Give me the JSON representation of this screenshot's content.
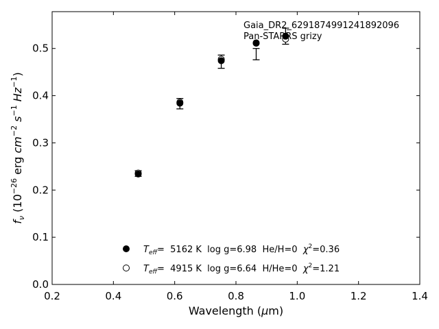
{
  "chart_data": {
    "type": "scatter",
    "annotation_lines": [
      "Gaia_DR2_6291874991241892096",
      "Pan-STARRS grizy"
    ],
    "xlabel": {
      "main": "Wavelength (",
      "mu": "μ",
      "end": "m)"
    },
    "ylabel": {
      "f": "f",
      "nu": "ν",
      "open": " (10",
      "e1": "−26",
      "erg": " erg ",
      "cm": "cm",
      "e2": "−2",
      "s": " s",
      "e3": "−1",
      "hz": " Hz",
      "e4": "−1",
      "close": ")"
    },
    "xlim": [
      0.2,
      1.4
    ],
    "ylim": [
      0.0,
      0.578
    ],
    "xticks": [
      0.2,
      0.4,
      0.6,
      0.8,
      1.0,
      1.2,
      1.4
    ],
    "xtick_labels": [
      "0.2",
      "0.4",
      "0.6",
      "0.8",
      "1.0",
      "1.2",
      "1.4"
    ],
    "yticks": [
      0.0,
      0.1,
      0.2,
      0.3,
      0.4,
      0.5
    ],
    "ytick_labels": [
      "0.0",
      "0.1",
      "0.2",
      "0.3",
      "0.4",
      "0.5"
    ],
    "observed": {
      "x": [
        0.481,
        0.617,
        0.752,
        0.866,
        0.962
      ],
      "y": [
        0.235,
        0.383,
        0.472,
        0.488,
        0.526
      ],
      "err": [
        0.006,
        0.011,
        0.014,
        0.012,
        0.017
      ]
    },
    "series": [
      {
        "marker": "filled",
        "x": [
          0.481,
          0.617,
          0.752,
          0.866,
          0.962
        ],
        "y": [
          0.234,
          0.384,
          0.474,
          0.512,
          0.526
        ],
        "legend": {
          "T": "T",
          "eff": "eff",
          "text": "=  5162 K  log g=6.98  He/H=0  ",
          "chi": "χ",
          "sup": "2",
          "val": "=0.36"
        }
      },
      {
        "marker": "open",
        "x": [
          0.481,
          0.617,
          0.752,
          0.866,
          0.962
        ],
        "y": [
          0.236,
          0.386,
          0.477,
          0.511,
          0.52
        ],
        "legend": {
          "T": "T",
          "eff": "eff",
          "text": "=  4915 K  log g=6.64  H/He=0  ",
          "chi": "χ",
          "sup": "2",
          "val": "=1.21"
        }
      }
    ],
    "legend_position": "lower-center",
    "grid": false
  }
}
